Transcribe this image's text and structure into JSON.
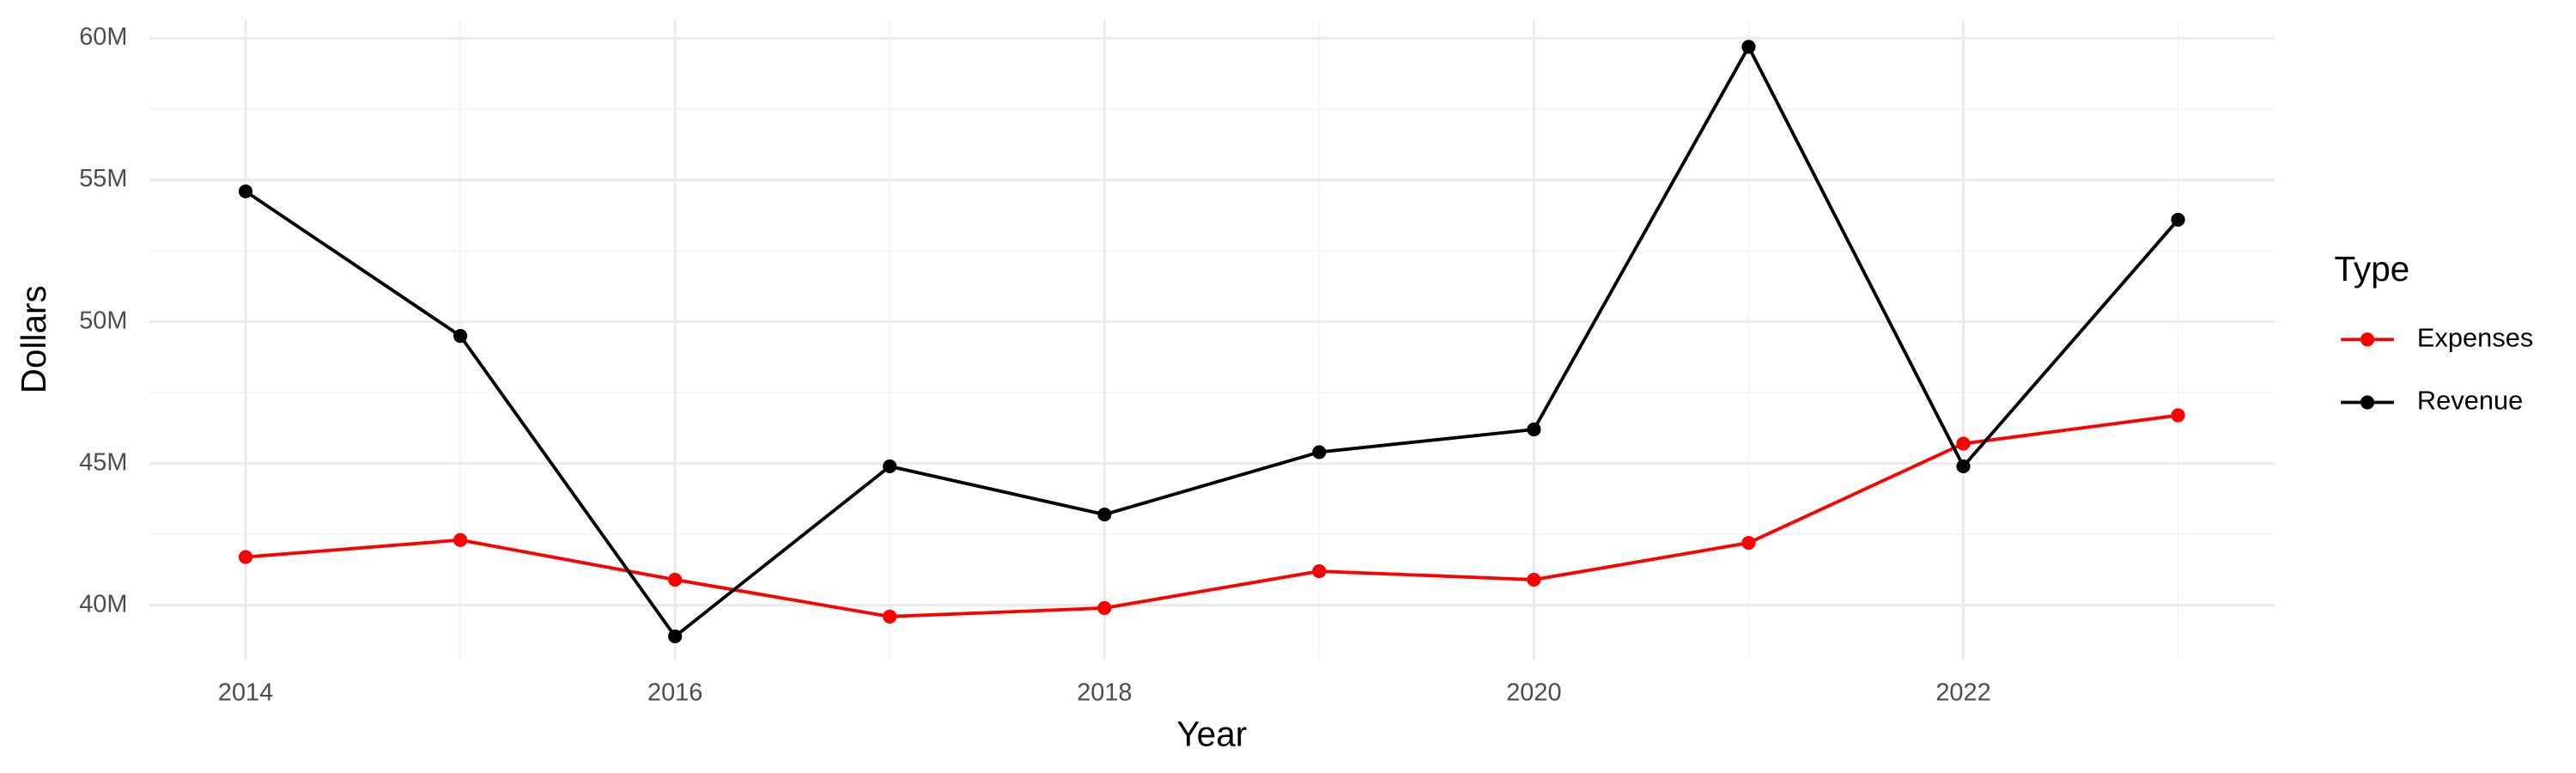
{
  "chart_data": {
    "type": "line",
    "x_label": "Year",
    "y_label": "Dollars",
    "legend_title": "Type",
    "legend": "right",
    "grid": true,
    "x": [
      2014,
      2015,
      2016,
      2017,
      2018,
      2019,
      2020,
      2021,
      2022,
      2023
    ],
    "series": [
      {
        "name": "Expenses",
        "color": "#ff0000",
        "values": [
          41700000,
          42300000,
          40900000,
          39600000,
          39900000,
          41200000,
          40900000,
          42200000,
          45700000,
          46700000
        ]
      },
      {
        "name": "Revenue",
        "color": "#000000",
        "values": [
          54600000,
          49500000,
          38900000,
          44900000,
          43200000,
          45400000,
          46200000,
          59700000,
          44900000,
          53600000
        ]
      }
    ],
    "xlim": [
      2013.55,
      2023.45
    ],
    "xticks": [
      2014,
      2016,
      2018,
      2020,
      2022
    ],
    "ylim": [
      38100000,
      60650000
    ],
    "yticks": [
      {
        "value": 40000000,
        "label": "40M"
      },
      {
        "value": 45000000,
        "label": "45M"
      },
      {
        "value": 50000000,
        "label": "50M"
      },
      {
        "value": 55000000,
        "label": "55M"
      },
      {
        "value": 60000000,
        "label": "60M"
      }
    ]
  }
}
